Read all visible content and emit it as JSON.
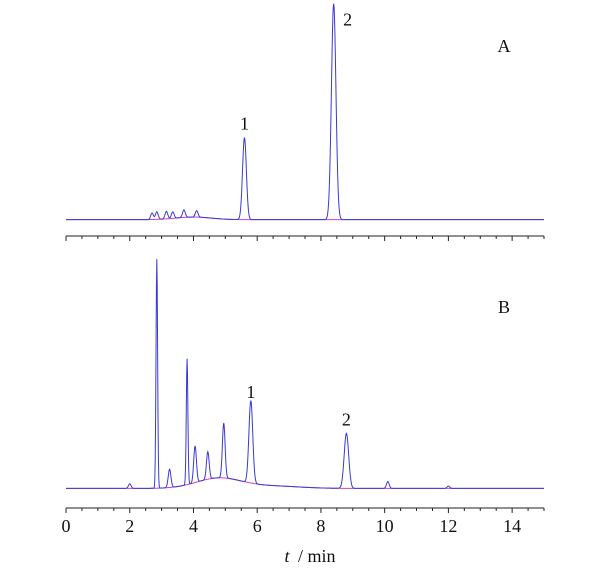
{
  "colors": {
    "signal": "#3a3ad0",
    "baseline": "#d040c0",
    "axis": "#222222"
  },
  "chart_data": {
    "type": "line",
    "xlabel_var": "t",
    "xlabel_unit": "/ min",
    "xlim": [
      0,
      15
    ],
    "x_ticks": [
      0,
      2,
      4,
      6,
      8,
      10,
      12,
      14
    ],
    "x_tick_labels": [
      "0",
      "2",
      "4",
      "6",
      "8",
      "10",
      "12",
      "14"
    ],
    "grid": false,
    "panels": [
      {
        "label": "A",
        "ylim": [
          0,
          1
        ],
        "baseline": 0.02,
        "peaks": [
          {
            "label": "1",
            "t": 5.6,
            "height": 0.38
          },
          {
            "label": "2",
            "t": 8.4,
            "height": 1.0
          }
        ],
        "minor_peaks": [
          {
            "t": 2.7,
            "height": 0.03
          },
          {
            "t": 2.85,
            "height": 0.035
          },
          {
            "t": 3.15,
            "height": 0.035
          },
          {
            "t": 3.35,
            "height": 0.03
          },
          {
            "t": 3.7,
            "height": 0.035
          },
          {
            "t": 4.1,
            "height": 0.03
          }
        ]
      },
      {
        "label": "B",
        "ylim": [
          0,
          1
        ],
        "baseline": 0.02,
        "peaks": [
          {
            "label": "1",
            "t": 5.8,
            "height": 0.36
          },
          {
            "label": "2",
            "t": 8.8,
            "height": 0.24
          }
        ],
        "minor_peaks": [
          {
            "t": 2.0,
            "height": 0.02
          },
          {
            "t": 2.85,
            "height": 1.0
          },
          {
            "t": 3.25,
            "height": 0.08
          },
          {
            "t": 3.8,
            "height": 0.55
          },
          {
            "t": 4.05,
            "height": 0.16
          },
          {
            "t": 4.45,
            "height": 0.12
          },
          {
            "t": 4.95,
            "height": 0.24
          },
          {
            "t": 10.1,
            "height": 0.03
          },
          {
            "t": 12.0,
            "height": 0.01
          }
        ]
      }
    ]
  }
}
